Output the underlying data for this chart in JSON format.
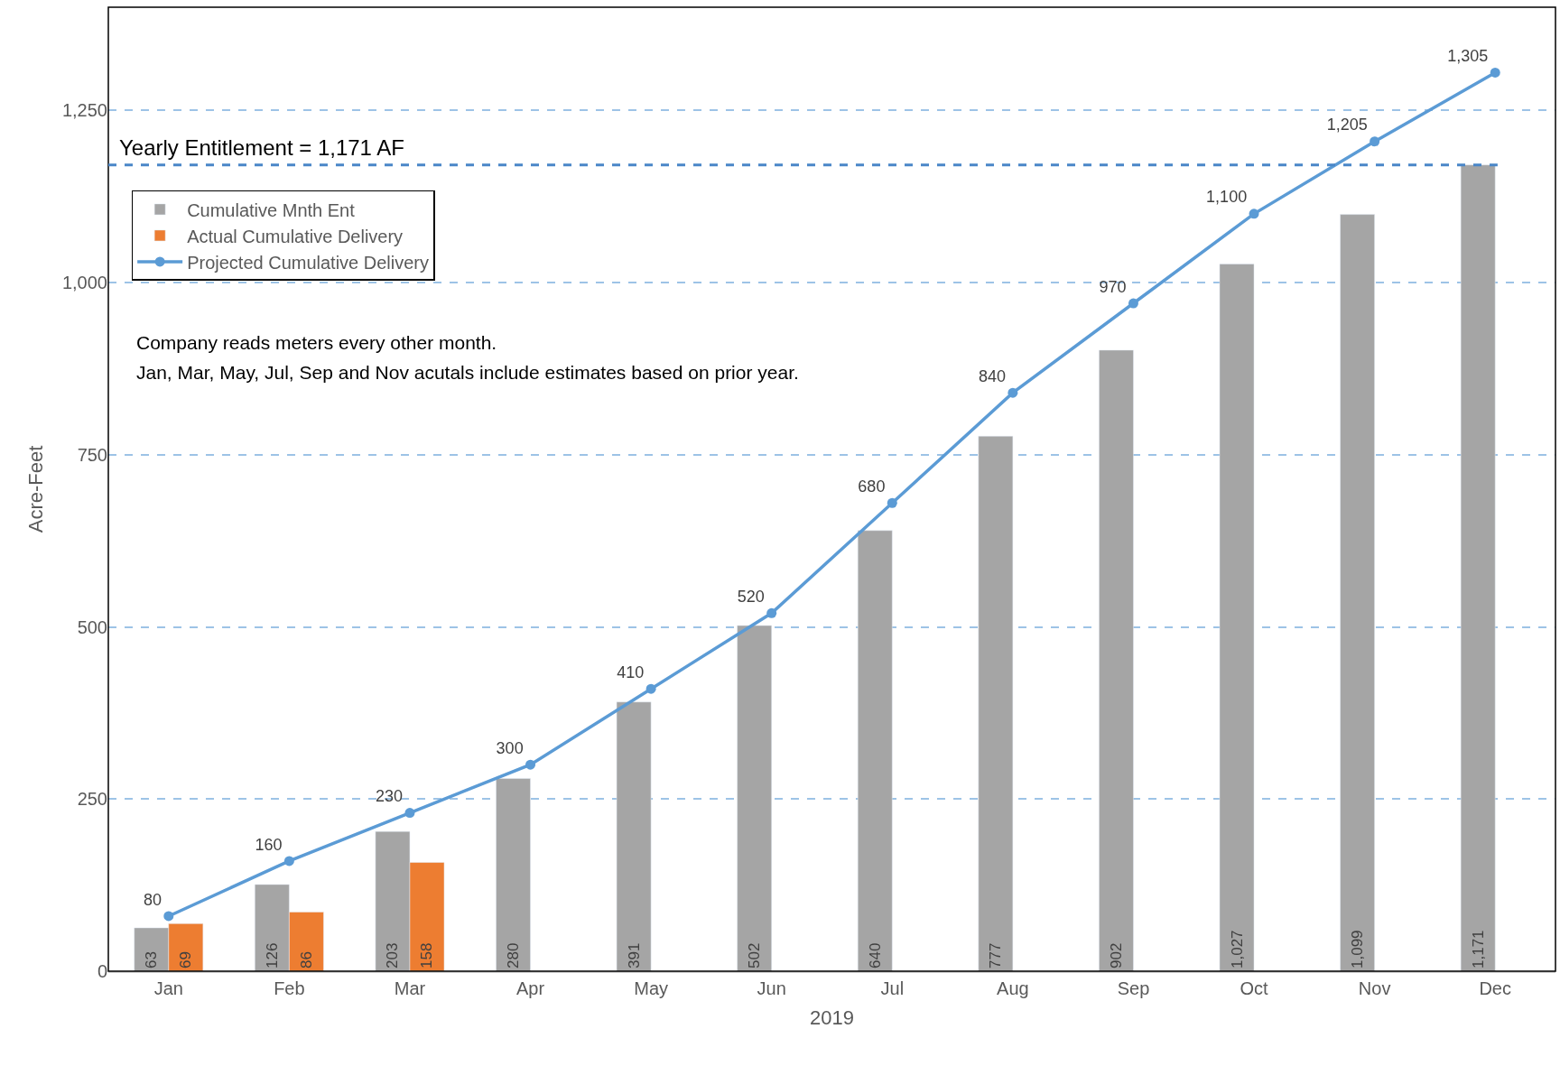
{
  "chart_data": {
    "type": "bar",
    "xlabel": "2019",
    "ylabel": "Acre-Feet",
    "categories": [
      "Jan",
      "Feb",
      "Mar",
      "Apr",
      "May",
      "Jun",
      "Jul",
      "Aug",
      "Sep",
      "Oct",
      "Nov",
      "Dec"
    ],
    "series": [
      {
        "name": "Cumulative Mnth Ent",
        "color": "#a5a5a5",
        "values": [
          63,
          126,
          203,
          280,
          391,
          502,
          640,
          777,
          902,
          1027,
          1099,
          1171
        ],
        "value_labels": [
          "63",
          "126",
          "203",
          "280",
          "391",
          "502",
          "640",
          "777",
          "902",
          "1,027",
          "1,099",
          "1,171"
        ]
      },
      {
        "name": "Actual Cumulative Delivery",
        "color": "#ed7d31",
        "values": [
          69,
          86,
          158,
          null,
          null,
          null,
          null,
          null,
          null,
          null,
          null,
          null
        ],
        "value_labels": [
          "69",
          "86",
          "158",
          null,
          null,
          null,
          null,
          null,
          null,
          null,
          null,
          null
        ]
      },
      {
        "name": "Projected Cumulative Delivery",
        "type": "line",
        "color": "#5b9bd5",
        "marker": "circle",
        "line_style": "solid",
        "values": [
          80,
          160,
          230,
          300,
          410,
          520,
          680,
          840,
          970,
          1100,
          1205,
          1305
        ],
        "value_labels": [
          "80",
          "160",
          "230",
          "300",
          "410",
          "520",
          "680",
          "840",
          "970",
          "1,100",
          "1,205",
          "1,305"
        ]
      }
    ],
    "ylim": [
      0,
      1400
    ],
    "yticks": [
      0,
      250,
      500,
      750,
      {
        "value": 1000,
        "label": "1,000"
      },
      {
        "value": 1250,
        "label": "1,250"
      }
    ],
    "grid": "y",
    "legend": "top left",
    "ref_lines": [
      {
        "axis": "y",
        "value": 1171,
        "label": "Yearly Entitlement = 1,171 AF",
        "color": "#4a86c8",
        "line_style": "dashed"
      }
    ],
    "annotations": [
      "Company reads meters every other month.",
      "Jan, Mar, May, Jul, Sep and Nov acutals include estimates based on prior year."
    ]
  }
}
